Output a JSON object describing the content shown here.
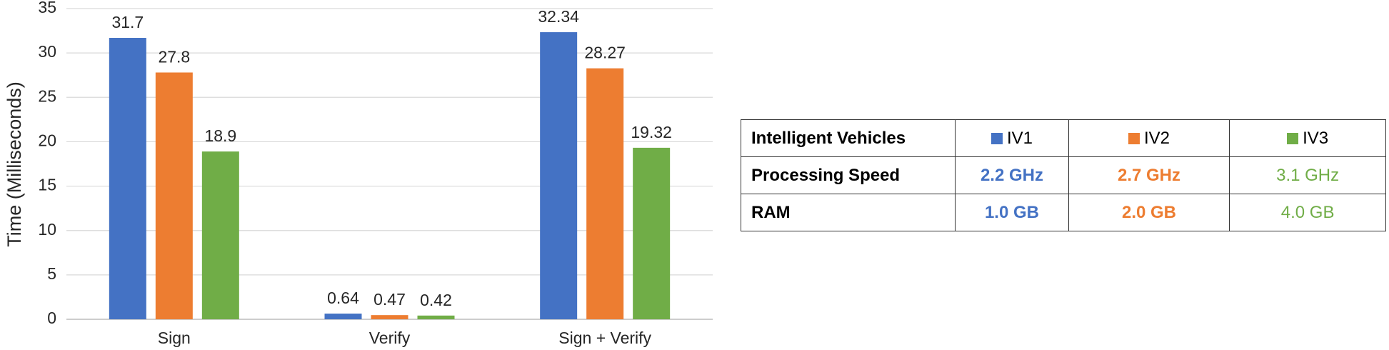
{
  "chart_data": {
    "type": "bar",
    "y_label": "Time (Milliseconds)",
    "categories": [
      "Sign",
      "Verify",
      "Sign + Verify"
    ],
    "series": [
      {
        "name": "IV1",
        "color": "#4472c4",
        "values": [
          31.7,
          0.64,
          32.34
        ]
      },
      {
        "name": "IV2",
        "color": "#ed7d31",
        "values": [
          27.8,
          0.47,
          28.27
        ]
      },
      {
        "name": "IV3",
        "color": "#70ad47",
        "values": [
          18.9,
          0.42,
          19.32
        ]
      }
    ],
    "ylim": [
      0,
      35
    ],
    "yticks": [
      0,
      5,
      10,
      15,
      20,
      25,
      30,
      35
    ],
    "grid": true
  },
  "table": {
    "header": "Intelligent Vehicles",
    "rows": [
      [
        "Processing Speed",
        "2.2 GHz",
        "2.7 GHz",
        "3.1 GHz"
      ],
      [
        "RAM",
        "1.0 GB",
        "2.0 GB",
        "4.0 GB"
      ]
    ]
  }
}
